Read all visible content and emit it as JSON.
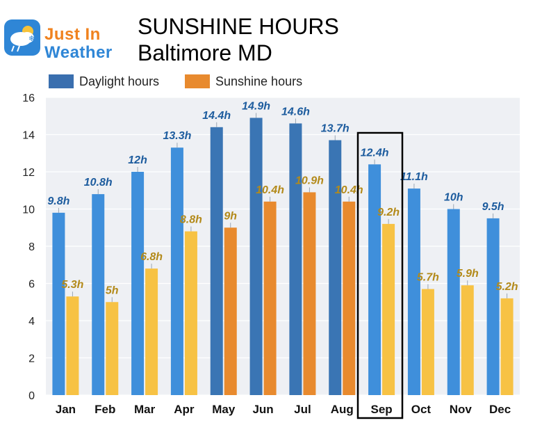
{
  "header": {
    "logo_line1": "Just In",
    "logo_line2": "Weather",
    "title": "SUNSHINE HOURS",
    "subtitle": "Baltimore MD"
  },
  "colors": {
    "daylight": "#3f8fdb",
    "daylight_dark": "#3a75b4",
    "sunshine": "#f7c244",
    "sunshine_dark": "#e88a2e",
    "daylight_label": "#1d5c9e",
    "sunshine_label": "#b38a1a",
    "highlight_box": "#000000"
  },
  "chart_data": {
    "type": "bar",
    "categories": [
      "Jan",
      "Feb",
      "Mar",
      "Apr",
      "May",
      "Jun",
      "Jul",
      "Aug",
      "Sep",
      "Oct",
      "Nov",
      "Dec"
    ],
    "series": [
      {
        "name": "Daylight hours",
        "values": [
          9.8,
          10.8,
          12,
          13.3,
          14.4,
          14.9,
          14.6,
          13.7,
          12.4,
          11.1,
          10,
          9.5
        ],
        "labels": [
          "9.8h",
          "10.8h",
          "12h",
          "13.3h",
          "14.4h",
          "14.9h",
          "14.6h",
          "13.7h",
          "12.4h",
          "11.1h",
          "10h",
          "9.5h"
        ]
      },
      {
        "name": "Sunshine hours",
        "values": [
          5.3,
          5,
          6.8,
          8.8,
          9,
          10.4,
          10.9,
          10.4,
          9.2,
          5.7,
          5.9,
          5.2
        ],
        "labels": [
          "5.3h",
          "5h",
          "6.8h",
          "8.8h",
          "9h",
          "10.4h",
          "10.9h",
          "10.4h",
          "9.2h",
          "5.7h",
          "5.9h",
          "5.2h"
        ]
      }
    ],
    "ylim": [
      0,
      16
    ],
    "yticks": [
      0,
      2,
      4,
      6,
      8,
      10,
      12,
      14,
      16
    ],
    "highlight_category": "Sep",
    "dark_months": [
      "May",
      "Jun",
      "Jul",
      "Aug"
    ],
    "grid": true,
    "legend_position": "top-left",
    "title": "SUNSHINE HOURS",
    "subtitle": "Baltimore MD",
    "xlabel": "",
    "ylabel": ""
  }
}
